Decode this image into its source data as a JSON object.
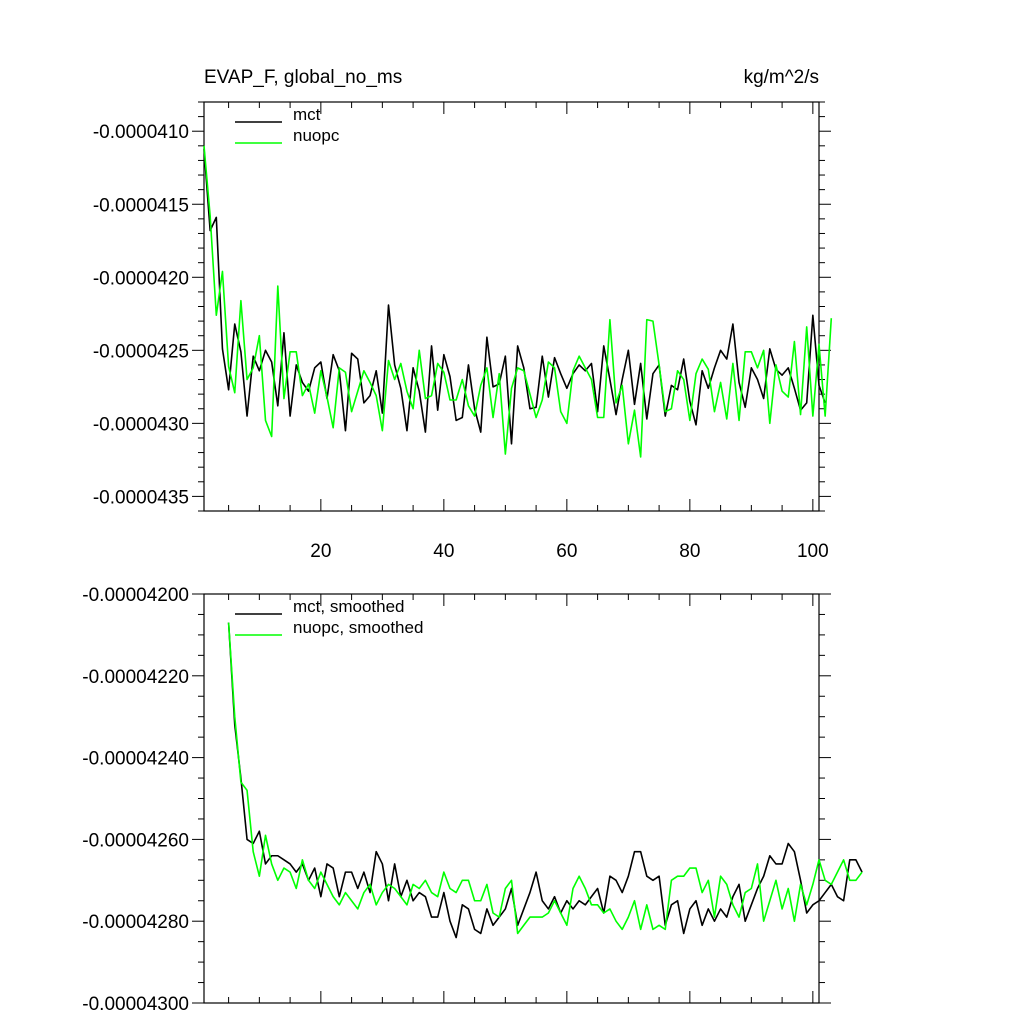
{
  "chart_data": [
    {
      "type": "line",
      "title": "EVAP_F, global_no_ms",
      "units": "kg/m^2/s",
      "xlim": [
        1,
        101
      ],
      "ylim": [
        -4.36e-05,
        -4.08e-05
      ],
      "xticks": [
        20,
        40,
        60,
        80,
        100
      ],
      "xtick_labels": [
        "20",
        "40",
        "60",
        "80",
        "100"
      ],
      "yticks": [
        -4.1e-05,
        -4.15e-05,
        -4.2e-05,
        -4.25e-05,
        -4.3e-05,
        -4.35e-05
      ],
      "ytick_labels": [
        "-0.0000410",
        "-0.0000415",
        "-0.0000420",
        "-0.0000425",
        "-0.0000430",
        "-0.0000435"
      ],
      "legend": "top-left",
      "series": [
        {
          "name": "mct",
          "color": "#000000",
          "values": [
            -4.112e-05,
            -4.168e-05,
            -4.159e-05,
            -4.249e-05,
            -4.277e-05,
            -4.232e-05,
            -4.251e-05,
            -4.295e-05,
            -4.254e-05,
            -4.264e-05,
            -4.25e-05,
            -4.258e-05,
            -4.288e-05,
            -4.238e-05,
            -4.295e-05,
            -4.26e-05,
            -4.272e-05,
            -4.278e-05,
            -4.262e-05,
            -4.258e-05,
            -4.283e-05,
            -4.253e-05,
            -4.264e-05,
            -4.305e-05,
            -4.252e-05,
            -4.256e-05,
            -4.286e-05,
            -4.281e-05,
            -4.264e-05,
            -4.293e-05,
            -4.219e-05,
            -4.26e-05,
            -4.276e-05,
            -4.305e-05,
            -4.262e-05,
            -4.278e-05,
            -4.306e-05,
            -4.247e-05,
            -4.291e-05,
            -4.253e-05,
            -4.268e-05,
            -4.298e-05,
            -4.296e-05,
            -4.26e-05,
            -4.29e-05,
            -4.306e-05,
            -4.241e-05,
            -4.275e-05,
            -4.273e-05,
            -4.254e-05,
            -4.314e-05,
            -4.247e-05,
            -4.262e-05,
            -4.29e-05,
            -4.289e-05,
            -4.254e-05,
            -4.282e-05,
            -4.255e-05,
            -4.266e-05,
            -4.276e-05,
            -4.266e-05,
            -4.26e-05,
            -4.264e-05,
            -4.259e-05,
            -4.292e-05,
            -4.247e-05,
            -4.27e-05,
            -4.294e-05,
            -4.27e-05,
            -4.25e-05,
            -4.287e-05,
            -4.259e-05,
            -4.297e-05,
            -4.266e-05,
            -4.26e-05,
            -4.295e-05,
            -4.274e-05,
            -4.277e-05,
            -4.256e-05,
            -4.285e-05,
            -4.301e-05,
            -4.264e-05,
            -4.276e-05,
            -4.262e-05,
            -4.25e-05,
            -4.256e-05,
            -4.232e-05,
            -4.272e-05,
            -4.289e-05,
            -4.262e-05,
            -4.27e-05,
            -4.283e-05,
            -4.249e-05,
            -4.263e-05,
            -4.267e-05,
            -4.262e-05,
            -4.276e-05,
            -4.291e-05,
            -4.286e-05,
            -4.226e-05,
            -4.274e-05,
            -4.286e-05
          ]
        },
        {
          "name": "nuopc",
          "color": "#00ff00",
          "values": [
            -4.11e-05,
            -4.158e-05,
            -4.226e-05,
            -4.196e-05,
            -4.261e-05,
            -4.279e-05,
            -4.216e-05,
            -4.27e-05,
            -4.262e-05,
            -4.24e-05,
            -4.298e-05,
            -4.309e-05,
            -4.206e-05,
            -4.283e-05,
            -4.251e-05,
            -4.251e-05,
            -4.281e-05,
            -4.273e-05,
            -4.293e-05,
            -4.264e-05,
            -4.282e-05,
            -4.303e-05,
            -4.262e-05,
            -4.265e-05,
            -4.292e-05,
            -4.278e-05,
            -4.264e-05,
            -4.272e-05,
            -4.281e-05,
            -4.305e-05,
            -4.257e-05,
            -4.27e-05,
            -4.259e-05,
            -4.278e-05,
            -4.29e-05,
            -4.25e-05,
            -4.283e-05,
            -4.281e-05,
            -4.259e-05,
            -4.265e-05,
            -4.284e-05,
            -4.284e-05,
            -4.27e-05,
            -4.288e-05,
            -4.295e-05,
            -4.274e-05,
            -4.262e-05,
            -4.296e-05,
            -4.266e-05,
            -4.321e-05,
            -4.276e-05,
            -4.262e-05,
            -4.264e-05,
            -4.28e-05,
            -4.296e-05,
            -4.284e-05,
            -4.258e-05,
            -4.262e-05,
            -4.292e-05,
            -4.3e-05,
            -4.264e-05,
            -4.254e-05,
            -4.262e-05,
            -4.27e-05,
            -4.296e-05,
            -4.296e-05,
            -4.229e-05,
            -4.286e-05,
            -4.274e-05,
            -4.314e-05,
            -4.291e-05,
            -4.323e-05,
            -4.229e-05,
            -4.23e-05,
            -4.26e-05,
            -4.292e-05,
            -4.29e-05,
            -4.264e-05,
            -4.27e-05,
            -4.298e-05,
            -4.266e-05,
            -4.256e-05,
            -4.263e-05,
            -4.292e-05,
            -4.272e-05,
            -4.297e-05,
            -4.259e-05,
            -4.298e-05,
            -4.251e-05,
            -4.251e-05,
            -4.262e-05,
            -4.25e-05,
            -4.3e-05,
            -4.26e-05,
            -4.278e-05,
            -4.282e-05,
            -4.244e-05,
            -4.294e-05,
            -4.234e-05,
            -4.295e-05,
            -4.246e-05,
            -4.295e-05,
            -4.228e-05
          ]
        }
      ]
    },
    {
      "type": "line",
      "title": "",
      "xlim": [
        1,
        101
      ],
      "ylim": [
        -4.3e-05,
        -4.2e-05
      ],
      "xticks": [
        20,
        40,
        60,
        80,
        100
      ],
      "xtick_labels": [],
      "yticks": [
        -4.2e-05,
        -4.22e-05,
        -4.24e-05,
        -4.26e-05,
        -4.28e-05,
        -4.3e-05
      ],
      "ytick_labels": [
        "-0.00004200",
        "-0.00004220",
        "-0.00004240",
        "-0.00004260",
        "-0.00004280",
        "-0.00004300"
      ],
      "legend": "top-left",
      "series": [
        {
          "name": "mct, smoothed",
          "color": "#000000",
          "values": [
            -4.207e-05,
            -4.232e-05,
            -4.245e-05,
            -4.26e-05,
            -4.261e-05,
            -4.258e-05,
            -4.266e-05,
            -4.264e-05,
            -4.264e-05,
            -4.265e-05,
            -4.266e-05,
            -4.268e-05,
            -4.266e-05,
            -4.27e-05,
            -4.267e-05,
            -4.274e-05,
            -4.266e-05,
            -4.267e-05,
            -4.274e-05,
            -4.268e-05,
            -4.268e-05,
            -4.272e-05,
            -4.268e-05,
            -4.273e-05,
            -4.263e-05,
            -4.266e-05,
            -4.275e-05,
            -4.266e-05,
            -4.274e-05,
            -4.27e-05,
            -4.275e-05,
            -4.273e-05,
            -4.274e-05,
            -4.279e-05,
            -4.279e-05,
            -4.273e-05,
            -4.28e-05,
            -4.284e-05,
            -4.276e-05,
            -4.277e-05,
            -4.282e-05,
            -4.283e-05,
            -4.277e-05,
            -4.281e-05,
            -4.279e-05,
            -4.277e-05,
            -4.272e-05,
            -4.281e-05,
            -4.277e-05,
            -4.273e-05,
            -4.268e-05,
            -4.275e-05,
            -4.277e-05,
            -4.274e-05,
            -4.278e-05,
            -4.275e-05,
            -4.277e-05,
            -4.275e-05,
            -4.276e-05,
            -4.274e-05,
            -4.272e-05,
            -4.278e-05,
            -4.269e-05,
            -4.27e-05,
            -4.273e-05,
            -4.269e-05,
            -4.263e-05,
            -4.263e-05,
            -4.269e-05,
            -4.27e-05,
            -4.269e-05,
            -4.281e-05,
            -4.276e-05,
            -4.275e-05,
            -4.283e-05,
            -4.277e-05,
            -4.275e-05,
            -4.281e-05,
            -4.277e-05,
            -4.28e-05,
            -4.277e-05,
            -4.279e-05,
            -4.274e-05,
            -4.271e-05,
            -4.28e-05,
            -4.276e-05,
            -4.272e-05,
            -4.269e-05,
            -4.264e-05,
            -4.266e-05,
            -4.266e-05,
            -4.261e-05,
            -4.263e-05,
            -4.27e-05,
            -4.278e-05,
            -4.276e-05,
            -4.275e-05,
            -4.273e-05,
            -4.271e-05,
            -4.274e-05,
            -4.275e-05,
            -4.265e-05,
            -4.265e-05,
            -4.268e-05
          ]
        },
        {
          "name": "nuopc, smoothed",
          "color": "#00ff00",
          "values": [
            -4.207e-05,
            -4.23e-05,
            -4.246e-05,
            -4.248e-05,
            -4.263e-05,
            -4.269e-05,
            -4.259e-05,
            -4.266e-05,
            -4.27e-05,
            -4.267e-05,
            -4.268e-05,
            -4.272e-05,
            -4.265e-05,
            -4.27e-05,
            -4.272e-05,
            -4.268e-05,
            -4.271e-05,
            -4.274e-05,
            -4.276e-05,
            -4.273e-05,
            -4.275e-05,
            -4.277e-05,
            -4.273e-05,
            -4.271e-05,
            -4.276e-05,
            -4.273e-05,
            -4.271e-05,
            -4.272e-05,
            -4.274e-05,
            -4.276e-05,
            -4.271e-05,
            -4.272e-05,
            -4.27e-05,
            -4.273e-05,
            -4.274e-05,
            -4.268e-05,
            -4.272e-05,
            -4.273e-05,
            -4.27e-05,
            -4.27e-05,
            -4.275e-05,
            -4.275e-05,
            -4.271e-05,
            -4.278e-05,
            -4.279e-05,
            -4.272e-05,
            -4.27e-05,
            -4.283e-05,
            -4.281e-05,
            -4.279e-05,
            -4.279e-05,
            -4.279e-05,
            -4.278e-05,
            -4.275e-05,
            -4.278e-05,
            -4.281e-05,
            -4.272e-05,
            -4.269e-05,
            -4.272e-05,
            -4.276e-05,
            -4.276e-05,
            -4.278e-05,
            -4.277e-05,
            -4.28e-05,
            -4.282e-05,
            -4.279e-05,
            -4.275e-05,
            -4.282e-05,
            -4.276e-05,
            -4.282e-05,
            -4.281e-05,
            -4.282e-05,
            -4.27e-05,
            -4.269e-05,
            -4.269e-05,
            -4.267e-05,
            -4.267e-05,
            -4.273e-05,
            -4.27e-05,
            -4.279e-05,
            -4.269e-05,
            -4.271e-05,
            -4.276e-05,
            -4.279e-05,
            -4.273e-05,
            -4.272e-05,
            -4.266e-05,
            -4.28e-05,
            -4.275e-05,
            -4.27e-05,
            -4.277e-05,
            -4.272e-05,
            -4.28e-05,
            -4.271e-05,
            -4.276e-05,
            -4.271e-05,
            -4.265e-05,
            -4.27e-05,
            -4.271e-05,
            -4.268e-05,
            -4.265e-05,
            -4.27e-05,
            -4.27e-05,
            -4.268e-05
          ]
        }
      ]
    }
  ]
}
